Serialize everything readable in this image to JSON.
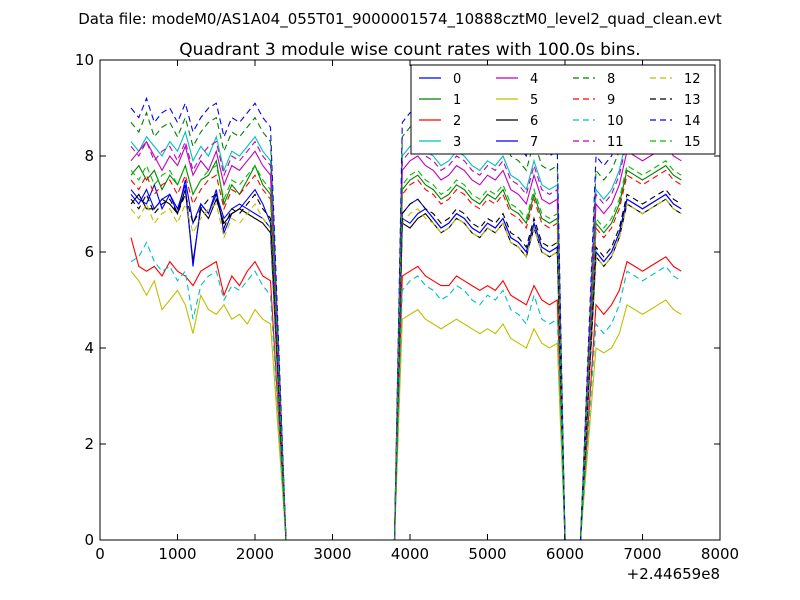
{
  "chart_data": {
    "type": "line",
    "suptitle": "Data file: modeM0/AS1A04_055T01_9000001574_10888cztM0_level2_quad_clean.evt",
    "title": "Quadrant 3 module wise count rates with 100.0s bins.",
    "xlabel": "",
    "ylabel": "",
    "x_offset_label": "+2.44659e8",
    "xlim": [
      0,
      8000
    ],
    "ylim": [
      0,
      10
    ],
    "xticks": [
      0,
      1000,
      2000,
      3000,
      4000,
      5000,
      6000,
      7000,
      8000
    ],
    "xtick_labels": [
      "0",
      "1000",
      "2000",
      "3000",
      "4000",
      "5000",
      "6000",
      "7000",
      "8000"
    ],
    "yticks": [
      0,
      2,
      4,
      6,
      8,
      10
    ],
    "ytick_labels": [
      "0",
      "2",
      "4",
      "6",
      "8",
      "10"
    ],
    "legend_position": "top-right",
    "legend_columns": 4,
    "x_start": 400,
    "x_step": 100,
    "series": [
      {
        "name": "0",
        "color": "#0000ff",
        "dash": "solid",
        "values": [
          7.3,
          7.1,
          7.0,
          7.4,
          6.9,
          7.2,
          6.8,
          7.5,
          6.6,
          7.0,
          6.8,
          7.3,
          6.4,
          6.8,
          6.9,
          7.1,
          7.3,
          7.0,
          6.6,
          6.8,
          7.0,
          7.1,
          6.9,
          6.7,
          6.5,
          6.6,
          6.8,
          6.7,
          6.5,
          6.4,
          6.6,
          6.5,
          6.7,
          6.3,
          6.2,
          6.0,
          6.6,
          6.1,
          6.0,
          6.1,
          6.0,
          5.8,
          6.0,
          6.4,
          7.1,
          7.0,
          6.9,
          7.0,
          7.1,
          7.2,
          7.0,
          6.9
        ]
      },
      {
        "name": "1",
        "color": "#008000",
        "dash": "solid",
        "values": [
          7.6,
          7.8,
          7.5,
          7.7,
          7.3,
          7.6,
          7.4,
          7.8,
          7.2,
          7.5,
          7.6,
          7.9,
          7.0,
          7.4,
          7.2,
          7.5,
          7.8,
          7.4,
          7.2,
          7.3,
          7.5,
          7.6,
          7.4,
          7.3,
          7.1,
          7.2,
          7.4,
          7.3,
          7.1,
          7.0,
          7.2,
          7.1,
          7.3,
          6.9,
          6.8,
          6.6,
          7.2,
          6.7,
          6.6,
          6.7,
          6.6,
          6.4,
          6.6,
          7.0,
          7.7,
          7.6,
          7.5,
          7.6,
          7.7,
          7.8,
          7.6,
          7.5
        ]
      },
      {
        "name": "2",
        "color": "#ff0000",
        "dash": "solid",
        "values": [
          6.3,
          5.7,
          5.6,
          5.7,
          5.5,
          5.8,
          5.6,
          5.5,
          5.3,
          5.6,
          5.7,
          5.8,
          5.1,
          5.5,
          5.3,
          5.6,
          5.8,
          5.5,
          5.4,
          5.5,
          5.6,
          5.7,
          5.5,
          5.4,
          5.3,
          5.3,
          5.5,
          5.4,
          5.3,
          5.2,
          5.3,
          5.2,
          5.4,
          5.1,
          5.0,
          4.9,
          5.3,
          5.0,
          4.9,
          5.0,
          4.9,
          4.7,
          4.9,
          5.2,
          5.8,
          5.7,
          5.6,
          5.7,
          5.8,
          5.9,
          5.7,
          5.6
        ]
      },
      {
        "name": "3",
        "color": "#00bfbf",
        "dash": "solid",
        "values": [
          8.3,
          8.1,
          8.4,
          8.2,
          8.0,
          8.3,
          8.1,
          8.5,
          7.9,
          8.2,
          8.0,
          8.4,
          7.7,
          8.1,
          8.0,
          8.2,
          8.4,
          8.1,
          7.9,
          8.0,
          8.2,
          8.3,
          8.1,
          8.0,
          7.8,
          7.9,
          8.1,
          8.0,
          7.8,
          7.7,
          7.9,
          7.8,
          8.0,
          7.6,
          7.5,
          7.3,
          7.9,
          7.4,
          7.3,
          7.4,
          7.3,
          7.1,
          7.3,
          7.7,
          8.4,
          8.3,
          8.2,
          8.3,
          8.4,
          8.5,
          8.3,
          8.2
        ]
      },
      {
        "name": "4",
        "color": "#bf00bf",
        "dash": "solid",
        "values": [
          7.9,
          8.1,
          8.3,
          8.0,
          7.7,
          8.0,
          7.8,
          8.2,
          7.6,
          7.9,
          7.7,
          8.1,
          7.4,
          7.8,
          7.7,
          7.9,
          8.1,
          7.8,
          7.6,
          7.7,
          7.9,
          8.0,
          7.8,
          7.7,
          7.5,
          7.6,
          7.8,
          7.7,
          7.5,
          7.4,
          7.6,
          7.5,
          7.7,
          7.3,
          7.2,
          7.0,
          7.6,
          7.1,
          7.0,
          7.1,
          7.0,
          6.8,
          7.0,
          7.4,
          8.1,
          8.0,
          7.9,
          8.0,
          8.1,
          8.2,
          8.0,
          7.9
        ]
      },
      {
        "name": "5",
        "color": "#bfbf00",
        "dash": "solid",
        "values": [
          5.6,
          5.4,
          5.1,
          5.4,
          4.8,
          5.0,
          5.2,
          4.9,
          4.3,
          5.1,
          4.8,
          4.7,
          4.9,
          4.6,
          4.7,
          4.5,
          4.8,
          4.6,
          4.5,
          4.6,
          4.7,
          4.8,
          4.6,
          4.5,
          4.4,
          4.5,
          4.6,
          4.5,
          4.4,
          4.3,
          4.4,
          4.3,
          4.5,
          4.2,
          4.1,
          4.0,
          4.4,
          4.1,
          4.0,
          4.1,
          4.0,
          3.9,
          4.0,
          4.3,
          4.9,
          4.8,
          4.7,
          4.8,
          4.9,
          5.0,
          4.8,
          4.7
        ]
      },
      {
        "name": "6",
        "color": "#000000",
        "dash": "solid",
        "values": [
          7.0,
          7.2,
          6.9,
          6.9,
          7.1,
          7.0,
          6.8,
          7.3,
          5.8,
          6.9,
          6.7,
          7.1,
          6.6,
          6.8,
          6.9,
          6.8,
          6.7,
          6.6,
          6.4,
          6.6,
          6.5,
          6.7,
          6.8,
          6.6,
          6.4,
          6.5,
          6.7,
          6.6,
          6.4,
          6.3,
          6.5,
          6.4,
          6.6,
          6.2,
          6.1,
          5.9,
          6.5,
          6.0,
          5.9,
          6.0,
          5.9,
          5.7,
          5.9,
          6.3,
          7.0,
          6.9,
          6.8,
          6.9,
          7.0,
          7.1,
          6.9,
          6.8
        ]
      },
      {
        "name": "7",
        "color": "#0000ff",
        "dash": "solid",
        "values": [
          7.2,
          7.0,
          7.3,
          6.9,
          7.1,
          7.2,
          6.9,
          7.4,
          5.7,
          7.0,
          6.8,
          7.2,
          6.7,
          6.9,
          7.0,
          6.9,
          6.8,
          6.7,
          6.5,
          6.7,
          6.6,
          6.8,
          6.9,
          6.7,
          6.5,
          6.6,
          6.8,
          6.7,
          6.5,
          6.4,
          6.6,
          6.5,
          6.7,
          6.3,
          6.2,
          6.0,
          6.6,
          6.1,
          6.0,
          6.1,
          6.0,
          5.8,
          6.0,
          6.4,
          7.1,
          7.0,
          6.9,
          7.0,
          7.1,
          7.2,
          7.0,
          6.9
        ]
      },
      {
        "name": "8",
        "color": "#008000",
        "dash": "dashed",
        "values": [
          8.7,
          8.5,
          8.9,
          8.4,
          8.6,
          8.7,
          8.4,
          8.8,
          8.2,
          8.5,
          8.7,
          8.8,
          8.1,
          8.5,
          8.4,
          8.6,
          8.8,
          8.5,
          8.3,
          8.4,
          8.6,
          8.7,
          8.5,
          8.4,
          8.2,
          8.3,
          8.5,
          8.4,
          8.2,
          8.1,
          8.3,
          8.2,
          8.4,
          8.0,
          7.9,
          7.7,
          8.3,
          7.8,
          7.7,
          7.8,
          7.7,
          7.5,
          7.7,
          8.1,
          8.8,
          8.7,
          8.6,
          8.7,
          8.8,
          8.9,
          8.7,
          8.6
        ]
      },
      {
        "name": "9",
        "color": "#ff0000",
        "dash": "dashed",
        "values": [
          7.5,
          7.3,
          7.6,
          7.2,
          7.4,
          7.5,
          7.2,
          7.6,
          7.0,
          7.3,
          7.5,
          7.6,
          6.9,
          7.3,
          7.2,
          7.4,
          7.6,
          7.3,
          7.1,
          7.2,
          7.4,
          7.5,
          7.3,
          7.2,
          7.0,
          7.1,
          7.3,
          7.2,
          7.0,
          6.9,
          7.1,
          7.0,
          7.2,
          6.8,
          6.7,
          6.5,
          7.1,
          6.6,
          6.5,
          6.6,
          6.5,
          6.3,
          6.5,
          6.9,
          7.6,
          7.5,
          7.4,
          7.5,
          7.6,
          7.7,
          7.5,
          7.4
        ]
      },
      {
        "name": "10",
        "color": "#00bfbf",
        "dash": "dashed",
        "values": [
          5.8,
          5.9,
          6.2,
          5.8,
          5.6,
          5.7,
          5.4,
          5.6,
          4.6,
          5.3,
          5.5,
          5.6,
          5.0,
          5.3,
          5.2,
          5.4,
          5.6,
          5.3,
          5.1,
          5.2,
          5.4,
          5.5,
          5.3,
          5.2,
          5.0,
          5.1,
          5.3,
          5.2,
          5.0,
          4.9,
          5.1,
          5.0,
          5.2,
          4.8,
          4.7,
          4.5,
          5.1,
          4.6,
          4.5,
          4.6,
          4.5,
          4.3,
          4.5,
          4.9,
          5.6,
          5.5,
          5.4,
          5.5,
          5.6,
          5.7,
          5.5,
          5.4
        ]
      },
      {
        "name": "11",
        "color": "#bf00bf",
        "dash": "dashed",
        "values": [
          8.2,
          8.0,
          8.3,
          7.9,
          8.1,
          8.2,
          7.9,
          8.3,
          7.7,
          8.0,
          8.2,
          8.3,
          7.6,
          8.0,
          7.9,
          8.1,
          8.3,
          8.0,
          7.8,
          7.9,
          8.1,
          8.2,
          8.0,
          7.9,
          7.7,
          7.8,
          8.0,
          7.9,
          7.7,
          7.6,
          7.8,
          7.7,
          7.9,
          7.5,
          7.4,
          7.2,
          7.8,
          7.3,
          7.2,
          7.3,
          7.2,
          7.0,
          7.2,
          7.6,
          8.3,
          8.2,
          8.1,
          8.2,
          8.3,
          8.4,
          8.2,
          8.1
        ]
      },
      {
        "name": "12",
        "color": "#bfbf00",
        "dash": "dashed",
        "values": [
          6.9,
          6.7,
          7.0,
          6.6,
          6.8,
          6.9,
          6.6,
          7.0,
          6.4,
          6.7,
          6.9,
          7.0,
          6.3,
          6.7,
          6.6,
          6.8,
          7.0,
          6.7,
          6.5,
          6.6,
          6.8,
          6.9,
          6.7,
          6.6,
          6.4,
          6.5,
          6.7,
          6.6,
          6.4,
          6.3,
          6.5,
          6.4,
          6.6,
          6.2,
          6.1,
          5.9,
          6.5,
          6.0,
          5.9,
          6.0,
          5.9,
          5.7,
          5.9,
          6.3,
          7.0,
          6.9,
          6.8,
          6.9,
          7.0,
          7.1,
          6.9,
          6.8
        ]
      },
      {
        "name": "13",
        "color": "#000000",
        "dash": "dashed",
        "values": [
          7.1,
          6.9,
          7.2,
          6.8,
          7.0,
          7.1,
          6.8,
          7.2,
          6.6,
          6.9,
          7.1,
          7.2,
          6.5,
          6.9,
          6.8,
          7.0,
          7.2,
          6.9,
          6.7,
          6.8,
          7.0,
          7.1,
          6.9,
          6.8,
          6.6,
          6.7,
          6.9,
          6.8,
          6.6,
          6.5,
          6.7,
          6.6,
          6.8,
          6.4,
          6.3,
          6.1,
          6.7,
          6.2,
          6.1,
          6.2,
          6.1,
          5.9,
          6.1,
          6.5,
          7.2,
          7.1,
          7.0,
          7.1,
          7.2,
          7.3,
          7.1,
          7.0
        ]
      },
      {
        "name": "14",
        "color": "#0000ff",
        "dash": "dashed",
        "values": [
          9.0,
          8.8,
          9.2,
          8.7,
          8.9,
          9.0,
          8.7,
          9.1,
          8.5,
          8.8,
          9.0,
          9.1,
          8.4,
          8.8,
          8.7,
          8.9,
          9.1,
          8.8,
          8.6,
          8.7,
          8.9,
          9.0,
          8.8,
          8.7,
          8.5,
          8.6,
          8.8,
          8.7,
          8.5,
          8.4,
          8.6,
          8.5,
          8.7,
          8.3,
          8.2,
          8.0,
          8.6,
          8.1,
          8.0,
          8.1,
          8.0,
          7.8,
          8.0,
          8.4,
          9.1,
          9.0,
          8.9,
          9.0,
          9.1,
          9.2,
          9.0,
          8.9
        ]
      },
      {
        "name": "15",
        "color": "#00bf00",
        "dash": "dashed",
        "values": [
          7.7,
          7.5,
          7.8,
          7.4,
          7.6,
          7.7,
          7.4,
          7.8,
          7.2,
          7.5,
          7.7,
          7.8,
          7.1,
          7.5,
          7.4,
          7.6,
          7.8,
          7.5,
          7.3,
          7.4,
          7.6,
          7.7,
          7.5,
          7.4,
          7.2,
          7.3,
          7.5,
          7.4,
          7.2,
          7.1,
          7.3,
          7.2,
          7.4,
          7.0,
          6.9,
          6.7,
          7.3,
          6.8,
          6.7,
          6.8,
          6.7,
          6.5,
          6.7,
          7.1,
          7.8,
          7.7,
          7.6,
          7.7,
          7.8,
          7.9,
          7.7,
          7.6
        ]
      }
    ]
  }
}
